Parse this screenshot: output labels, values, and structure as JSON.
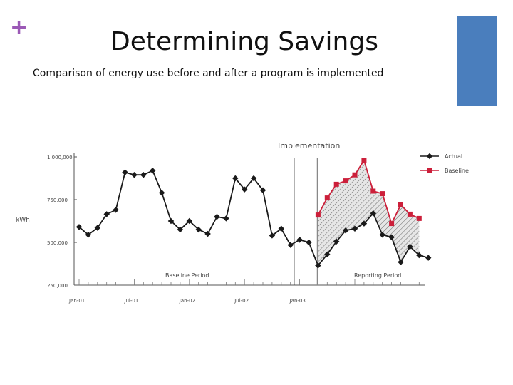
{
  "slide": {
    "plus_glyph": "+",
    "title": "Determining Savings",
    "subtitle": "Comparison of energy use before and after a program is implemented",
    "accent_color": "#9b59b6",
    "corner_bar_color": "#4a7ebd"
  },
  "chart_data": {
    "type": "line",
    "ylabel": "kWh",
    "ylim": [
      250000,
      1050000
    ],
    "yticks": [
      {
        "value": 1000000,
        "label": "1,000,000"
      },
      {
        "value": 750000,
        "label": "750,000"
      },
      {
        "value": 500000,
        "label": "500,000"
      },
      {
        "value": 250000,
        "label": "250,000"
      }
    ],
    "xticks": [
      {
        "index": 0,
        "label": "Jan-01"
      },
      {
        "index": 6,
        "label": "Jul-01"
      },
      {
        "index": 12,
        "label": "Jan-02"
      },
      {
        "index": 18,
        "label": "Jul-02"
      },
      {
        "index": 24,
        "label": "Jan-03"
      }
    ],
    "grid": false,
    "legend_position": "top-right",
    "annotations": {
      "implementation": "Implementation",
      "baseline_period": "Baseline Period",
      "reporting_period": "Reporting Period"
    },
    "implementation_index": 23,
    "reporting_start_index": 26,
    "series": [
      {
        "name": "Actual",
        "color": "#1a1a1a",
        "marker": "diamond",
        "start_index": 0,
        "values": [
          590000,
          545000,
          585000,
          665000,
          690000,
          910000,
          895000,
          895000,
          920000,
          790000,
          625000,
          575000,
          625000,
          575000,
          550000,
          650000,
          640000,
          875000,
          810000,
          875000,
          805000,
          540000,
          580000,
          485000,
          515000,
          500000,
          365000,
          430000,
          505000,
          570000,
          580000,
          610000,
          670000,
          545000,
          530000,
          385000,
          475000,
          425000,
          410000
        ]
      },
      {
        "name": "Baseline",
        "color": "#cc1f3a",
        "marker": "square",
        "start_index": 26,
        "values": [
          660000,
          760000,
          840000,
          860000,
          895000,
          980000,
          800000,
          785000,
          610000,
          720000,
          665000,
          640000
        ]
      }
    ]
  }
}
